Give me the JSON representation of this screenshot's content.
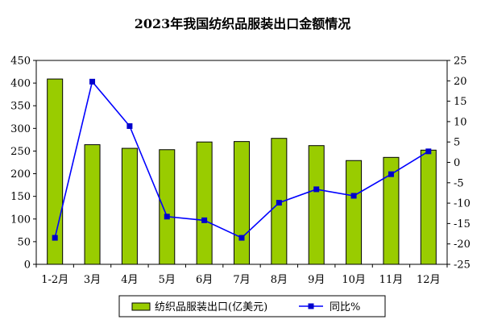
{
  "chart_data": {
    "type": "bar+line",
    "title": "2023年我国纺织品服装出口金额情况",
    "categories": [
      "1-2月",
      "3月",
      "4月",
      "5月",
      "6月",
      "7月",
      "8月",
      "9月",
      "10月",
      "11月",
      "12月"
    ],
    "series": [
      {
        "name": "纺织品服装出口(亿美元)",
        "kind": "bar",
        "axis": "left",
        "color": "#99cc00",
        "values": [
          409,
          264,
          256,
          253,
          270,
          271,
          278,
          262,
          229,
          236,
          252
        ]
      },
      {
        "name": "同比%",
        "kind": "line",
        "axis": "right",
        "color": "#0000ff",
        "values": [
          -18.5,
          19.8,
          8.9,
          -13.3,
          -14.2,
          -18.5,
          -9.9,
          -6.6,
          -8.2,
          -2.9,
          2.7
        ]
      }
    ],
    "y_left": {
      "min": 0,
      "max": 450,
      "step": 50
    },
    "y_right": {
      "min": -25,
      "max": 25,
      "step": 5
    },
    "legend_position": "bottom"
  }
}
